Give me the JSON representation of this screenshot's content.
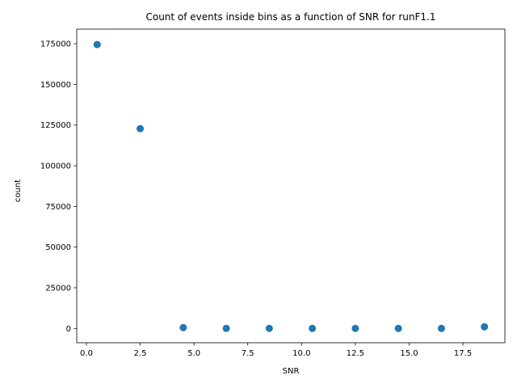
{
  "chart_data": {
    "type": "scatter",
    "title": "Count of events inside bins as a function of SNR for runF1.1",
    "xlabel": "SNR",
    "ylabel": "count",
    "xlim": [
      -0.45,
      19.45
    ],
    "ylim": [
      -8800,
      184000
    ],
    "x_ticks": [
      0.0,
      2.5,
      5.0,
      7.5,
      10.0,
      12.5,
      15.0,
      17.5
    ],
    "x_tick_labels": [
      "0.0",
      "2.5",
      "5.0",
      "7.5",
      "10.0",
      "12.5",
      "15.0",
      "17.5"
    ],
    "y_ticks": [
      0,
      25000,
      50000,
      75000,
      100000,
      125000,
      150000,
      175000
    ],
    "y_tick_labels": [
      "0",
      "25000",
      "50000",
      "75000",
      "100000",
      "125000",
      "150000",
      "175000"
    ],
    "grid": false,
    "marker_color": "#1f77b4",
    "x": [
      0.5,
      2.5,
      4.5,
      6.5,
      8.5,
      10.5,
      12.5,
      14.5,
      16.5,
      18.5
    ],
    "y": [
      174500,
      122800,
      500,
      50,
      20,
      10,
      5,
      5,
      5,
      1000
    ]
  }
}
